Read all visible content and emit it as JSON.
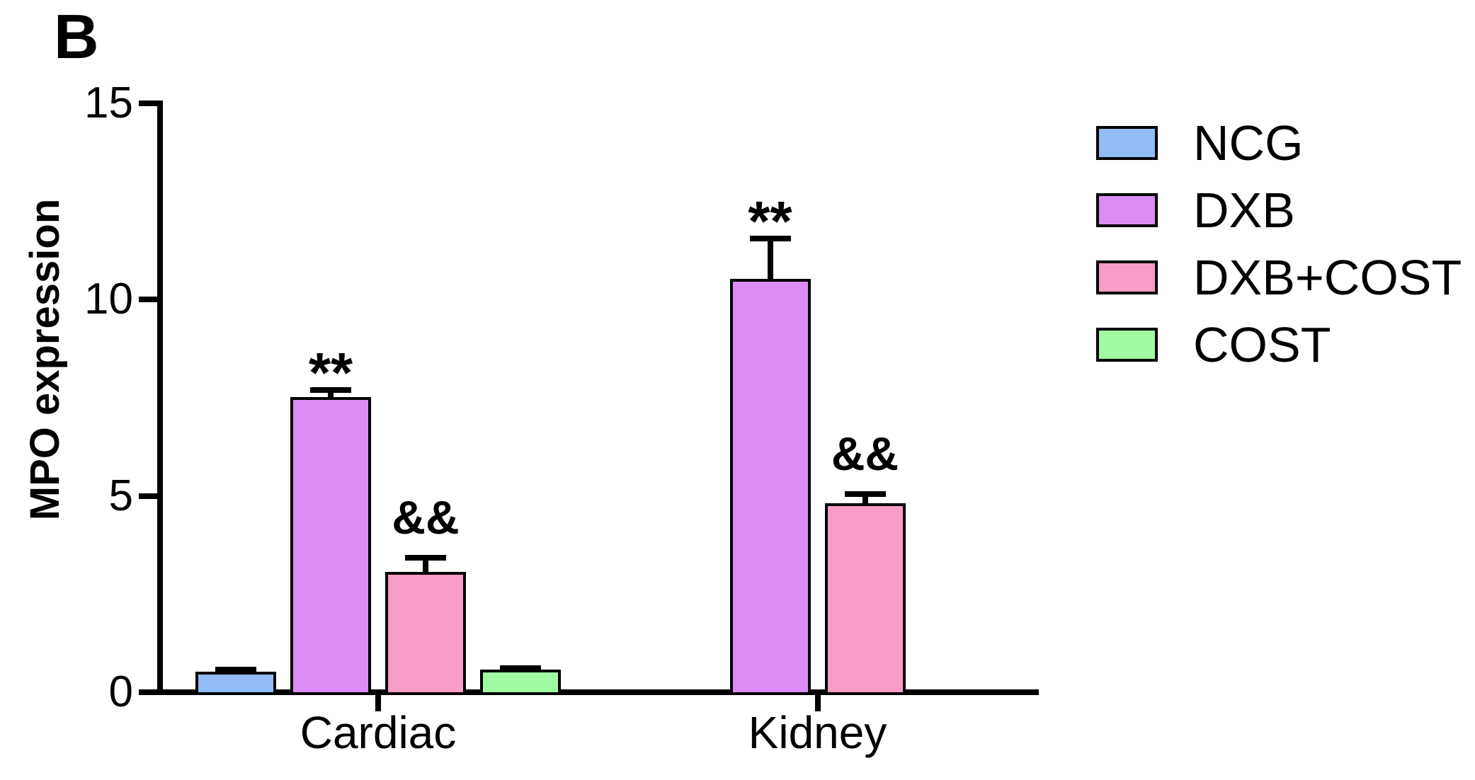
{
  "figure": {
    "panel_label": "B",
    "background_color": "#ffffff"
  },
  "chart_data": {
    "type": "bar",
    "title": "",
    "xlabel": "",
    "ylabel": "MPO expression",
    "categories": [
      "Cardiac",
      "Kidney"
    ],
    "ylim": [
      0,
      15
    ],
    "yticks": [
      0,
      5,
      10,
      15
    ],
    "grid": false,
    "legend_position": "right-outside",
    "bar_outline_color": "#000000",
    "error_bar_color": "#000000",
    "series": [
      {
        "name": "NCG",
        "color": "#92BDF6",
        "values": [
          0.45,
          null
        ],
        "errors": [
          0.13,
          null
        ],
        "annotations": [
          "",
          ""
        ]
      },
      {
        "name": "DXB",
        "color": "#DB8CF4",
        "values": [
          7.45,
          10.45
        ],
        "errors": [
          0.25,
          1.1
        ],
        "annotations": [
          "**",
          "**"
        ]
      },
      {
        "name": "DXB+COST",
        "color": "#F99CC7",
        "values": [
          3.0,
          4.75
        ],
        "errors": [
          0.43,
          0.3
        ],
        "annotations": [
          "&&",
          "&&"
        ]
      },
      {
        "name": "COST",
        "color": "#A0FBA3",
        "values": [
          0.5,
          null
        ],
        "errors": [
          0.12,
          null
        ],
        "annotations": [
          "",
          ""
        ]
      }
    ]
  }
}
